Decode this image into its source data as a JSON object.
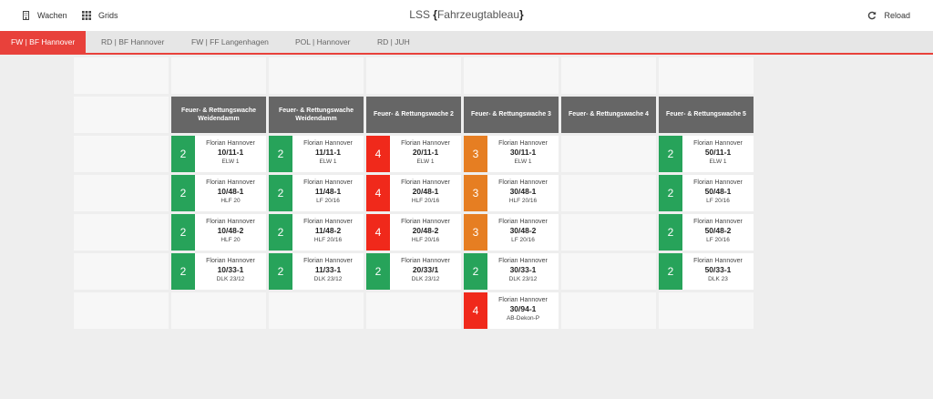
{
  "topbar": {
    "wachen_label": "Wachen",
    "grids_label": "Grids",
    "title_prefix": "LSS ",
    "title_open": "{",
    "title_main": "Fahrzeugtableau",
    "title_close": "}",
    "reload_label": "Reload"
  },
  "tabs": [
    {
      "label": "FW | BF Hannover",
      "active": true
    },
    {
      "label": "RD | BF Hannover",
      "active": false
    },
    {
      "label": "FW | FF Langenhagen",
      "active": false
    },
    {
      "label": "POL | Hannover",
      "active": false
    },
    {
      "label": "RD | JUH",
      "active": false
    }
  ],
  "colors": {
    "status_2": "#27a35a",
    "status_3": "#e67e22",
    "status_4": "#f0291b",
    "accent": "#e8413b",
    "header": "#666666"
  },
  "icons": {
    "wachen": "building-icon",
    "grids": "grid-icon",
    "reload": "reload-icon"
  },
  "grid": {
    "rows": 7,
    "columns": 7,
    "stations": [
      {
        "column": 1,
        "name_line1": "Feuer- & Rettungswache",
        "name_line2": "Weidendamm"
      },
      {
        "column": 2,
        "name_line1": "Feuer- & Rettungswache",
        "name_line2": "Weidendamm"
      },
      {
        "column": 3,
        "name_line1": "Feuer- & Rettungswache 2",
        "name_line2": ""
      },
      {
        "column": 4,
        "name_line1": "Feuer- & Rettungswache 3",
        "name_line2": ""
      },
      {
        "column": 5,
        "name_line1": "Feuer- & Rettungswache 4",
        "name_line2": ""
      },
      {
        "column": 6,
        "name_line1": "Feuer- & Rettungswache 5",
        "name_line2": ""
      }
    ],
    "vehicles": [
      {
        "row": 2,
        "column": 1,
        "status": "2",
        "callsign_prefix": "Florian Hannover",
        "callsign": "10/11-1",
        "type": "ELW 1"
      },
      {
        "row": 3,
        "column": 1,
        "status": "2",
        "callsign_prefix": "Florian Hannover",
        "callsign": "10/48-1",
        "type": "HLF 20"
      },
      {
        "row": 4,
        "column": 1,
        "status": "2",
        "callsign_prefix": "Florian Hannover",
        "callsign": "10/48-2",
        "type": "HLF 20"
      },
      {
        "row": 5,
        "column": 1,
        "status": "2",
        "callsign_prefix": "Florian Hannover",
        "callsign": "10/33-1",
        "type": "DLK 23/12"
      },
      {
        "row": 2,
        "column": 2,
        "status": "2",
        "callsign_prefix": "Florian Hannover",
        "callsign": "11/11-1",
        "type": "ELW 1"
      },
      {
        "row": 3,
        "column": 2,
        "status": "2",
        "callsign_prefix": "Florian Hannover",
        "callsign": "11/48-1",
        "type": "LF 20/16"
      },
      {
        "row": 4,
        "column": 2,
        "status": "2",
        "callsign_prefix": "Florian Hannover",
        "callsign": "11/48-2",
        "type": "HLF 20/16"
      },
      {
        "row": 5,
        "column": 2,
        "status": "2",
        "callsign_prefix": "Florian Hannover",
        "callsign": "11/33-1",
        "type": "DLK 23/12"
      },
      {
        "row": 2,
        "column": 3,
        "status": "4",
        "callsign_prefix": "Florian Hannover",
        "callsign": "20/11-1",
        "type": "ELW 1"
      },
      {
        "row": 3,
        "column": 3,
        "status": "4",
        "callsign_prefix": "Florian Hannover",
        "callsign": "20/48-1",
        "type": "HLF 20/16"
      },
      {
        "row": 4,
        "column": 3,
        "status": "4",
        "callsign_prefix": "Florian Hannover",
        "callsign": "20/48-2",
        "type": "HLF 20/16"
      },
      {
        "row": 5,
        "column": 3,
        "status": "2",
        "callsign_prefix": "Florian Hannover",
        "callsign": "20/33/1",
        "type": "DLK 23/12"
      },
      {
        "row": 2,
        "column": 4,
        "status": "3",
        "callsign_prefix": "Florian Hannover",
        "callsign": "30/11-1",
        "type": "ELW 1"
      },
      {
        "row": 3,
        "column": 4,
        "status": "3",
        "callsign_prefix": "Florian Hannover",
        "callsign": "30/48-1",
        "type": "HLF 20/16"
      },
      {
        "row": 4,
        "column": 4,
        "status": "3",
        "callsign_prefix": "Florian Hannover",
        "callsign": "30/48-2",
        "type": "LF 20/16"
      },
      {
        "row": 5,
        "column": 4,
        "status": "2",
        "callsign_prefix": "Florian Hannover",
        "callsign": "30/33-1",
        "type": "DLK 23/12"
      },
      {
        "row": 6,
        "column": 4,
        "status": "4",
        "callsign_prefix": "Florian Hannover",
        "callsign": "30/94-1",
        "type": "AB-Dekon-P"
      },
      {
        "row": 2,
        "column": 6,
        "status": "2",
        "callsign_prefix": "Florian Hannover",
        "callsign": "50/11-1",
        "type": "ELW 1"
      },
      {
        "row": 3,
        "column": 6,
        "status": "2",
        "callsign_prefix": "Florian Hannover",
        "callsign": "50/48-1",
        "type": "LF 20/16"
      },
      {
        "row": 4,
        "column": 6,
        "status": "2",
        "callsign_prefix": "Florian Hannover",
        "callsign": "50/48-2",
        "type": "LF 20/16"
      },
      {
        "row": 5,
        "column": 6,
        "status": "2",
        "callsign_prefix": "Florian Hannover",
        "callsign": "50/33-1",
        "type": "DLK 23"
      }
    ]
  }
}
